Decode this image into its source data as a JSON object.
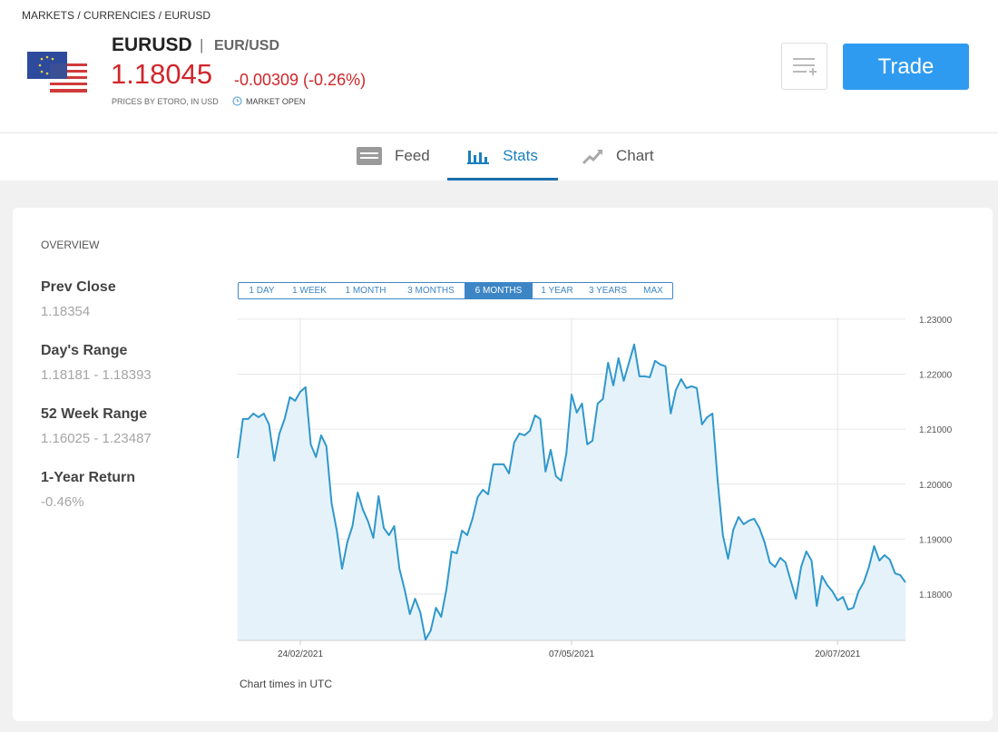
{
  "breadcrumb": "MARKETS / CURRENCIES / EURUSD",
  "instrument": {
    "symbol": "EURUSD",
    "separator": "|",
    "name": "EUR/USD",
    "price": "1.18045",
    "change": "-0.00309 (-0.26%)",
    "source": "PRICES BY ETORO, IN USD",
    "status": "MARKET OPEN"
  },
  "actions": {
    "trade": "Trade"
  },
  "tabs": [
    {
      "label": "Feed"
    },
    {
      "label": "Stats",
      "active": true
    },
    {
      "label": "Chart"
    }
  ],
  "overview": {
    "title": "OVERVIEW",
    "stats": [
      {
        "label": "Prev Close",
        "value": "1.18354"
      },
      {
        "label": "Day's Range",
        "value": "1.18181 - 1.18393"
      },
      {
        "label": "52 Week Range",
        "value": "1.16025 - 1.23487"
      },
      {
        "label": "1-Year Return",
        "value": "-0.46%"
      }
    ]
  },
  "range_buttons": [
    {
      "label": "1 DAY"
    },
    {
      "label": "1 WEEK"
    },
    {
      "label": "1 MONTH"
    },
    {
      "label": "3 MONTHS"
    },
    {
      "label": "6 MONTHS",
      "active": true
    },
    {
      "label": "1 YEAR"
    },
    {
      "label": "3 YEARS"
    },
    {
      "label": "MAX"
    }
  ],
  "chart_data": {
    "type": "area",
    "color": "#2f98cc",
    "fill_color": "#e6f2fa",
    "grid": true,
    "footnote": "Chart times in UTC",
    "categories": [
      null,
      null,
      null,
      null,
      null,
      null,
      null,
      null,
      null,
      null,
      null,
      null,
      "24/02/2021",
      null,
      null,
      null,
      null,
      null,
      null,
      null,
      null,
      null,
      null,
      null,
      null,
      null,
      null,
      null,
      null,
      null,
      null,
      null,
      null,
      null,
      null,
      null,
      null,
      null,
      null,
      null,
      null,
      null,
      null,
      null,
      null,
      null,
      null,
      null,
      null,
      null,
      null,
      null,
      null,
      null,
      null,
      null,
      null,
      null,
      null,
      null,
      null,
      null,
      null,
      null,
      "07/05/2021",
      null,
      null,
      null,
      null,
      null,
      null,
      null,
      null,
      null,
      null,
      null,
      null,
      null,
      null,
      null,
      null,
      null,
      null,
      null,
      null,
      null,
      null,
      null,
      null,
      null,
      null,
      null,
      null,
      null,
      null,
      null,
      null,
      null,
      null,
      null,
      null,
      null,
      null,
      null,
      null,
      null,
      null,
      null,
      null,
      null,
      null,
      null,
      null,
      null,
      null,
      "20/07/2021",
      null,
      null,
      null,
      null,
      null,
      null,
      null,
      null,
      null,
      null,
      null,
      null,
      null
    ],
    "values": [
      1.20475,
      1.21185,
      1.21185,
      1.21284,
      1.21218,
      1.21284,
      1.21086,
      1.20426,
      1.20921,
      1.21185,
      1.21581,
      1.21515,
      1.2168,
      1.21763,
      1.20723,
      1.20492,
      1.20888,
      1.2069,
      1.1965,
      1.19155,
      1.18462,
      1.18941,
      1.19238,
      1.19848,
      1.19535,
      1.1932,
      1.19023,
      1.19782,
      1.19205,
      1.19073,
      1.19238,
      1.18462,
      1.18083,
      1.17637,
      1.17918,
      1.1767,
      1.17175,
      1.1734,
      1.17753,
      1.17588,
      1.18083,
      1.18776,
      1.18743,
      1.19155,
      1.19073,
      1.1937,
      1.19766,
      1.19898,
      1.19815,
      1.2036,
      1.2036,
      1.2036,
      1.20195,
      1.20756,
      1.20921,
      1.20888,
      1.2097,
      1.21251,
      1.21185,
      1.20228,
      1.20624,
      1.20145,
      1.20063,
      1.20558,
      1.2163,
      1.213,
      1.21465,
      1.20723,
      1.20789,
      1.21465,
      1.21548,
      1.22208,
      1.21795,
      1.2229,
      1.21878,
      1.22208,
      1.22538,
      1.2196,
      1.2196,
      1.21944,
      1.22241,
      1.22175,
      1.22142,
      1.21284,
      1.21713,
      1.21911,
      1.21746,
      1.21779,
      1.21746,
      1.21086,
      1.21218,
      1.21284,
      1.20063,
      1.19073,
      1.18644,
      1.19172,
      1.19403,
      1.19271,
      1.19337,
      1.1937,
      1.19205,
      1.18941,
      1.18578,
      1.18495,
      1.1866,
      1.18578,
      1.18248,
      1.17918,
      1.18495,
      1.18776,
      1.18611,
      1.17786,
      1.1833,
      1.18165,
      1.1805,
      1.17885,
      1.17951,
      1.1772,
      1.17753,
      1.1805,
      1.18215,
      1.18495,
      1.18875,
      1.18611,
      1.1871,
      1.18627,
      1.1838,
      1.18347,
      1.18215
    ],
    "ylim": [
      1.1716,
      1.2303
    ],
    "yticks": [
      {
        "value": 1.18,
        "label": "1.18000"
      },
      {
        "value": 1.19,
        "label": "1.19000"
      },
      {
        "value": 1.2,
        "label": "1.20000"
      },
      {
        "value": 1.21,
        "label": "1.21000"
      },
      {
        "value": 1.22,
        "label": "1.22000"
      },
      {
        "value": 1.23,
        "label": "1.23000"
      }
    ]
  }
}
